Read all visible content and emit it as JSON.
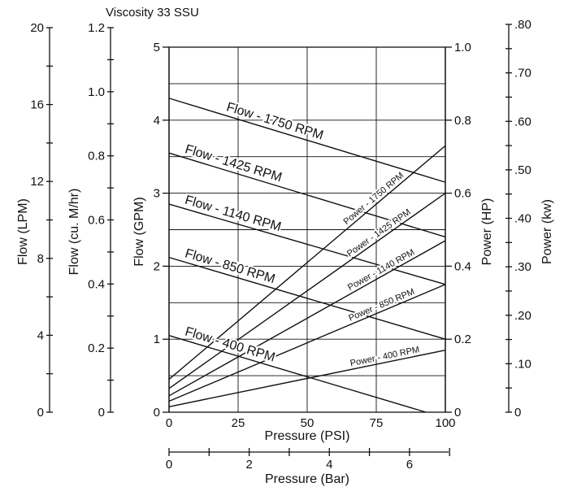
{
  "chart_data": {
    "type": "line",
    "title": "Viscosity 33 SSU",
    "xlabel": "Pressure (PSI)",
    "xlabel_secondary": "Pressure (Bar)",
    "ylabel_left": "Flow (GPM)",
    "ylabel_right": "Power (HP)",
    "xlim": [
      0,
      100
    ],
    "ylim_flow_gpm": [
      0,
      5
    ],
    "ylim_power_hp": [
      0,
      1.0
    ],
    "grid": true,
    "axes": {
      "lpm": {
        "label": "Flow (LPM)",
        "ticks": [
          "0",
          "4",
          "8",
          "12",
          "16",
          "20"
        ]
      },
      "cumhr": {
        "label": "Flow (cu. M/hr)",
        "ticks": [
          "0",
          "0.2",
          "0.4",
          "0.6",
          "0.8",
          "1.0",
          "1.2"
        ]
      },
      "gpm": {
        "label": "Flow (GPM)",
        "ticks": [
          "0",
          "1",
          "2",
          "3",
          "4",
          "5"
        ]
      },
      "hp": {
        "label": "Power (HP)",
        "ticks": [
          "0",
          "0.2",
          "0.4",
          "0.6",
          "0.8",
          "1.0"
        ]
      },
      "kw": {
        "label": "Power (kw)",
        "ticks": [
          "0",
          ".10",
          ".20",
          ".30",
          ".40",
          ".50",
          ".60",
          ".70",
          ".80"
        ]
      },
      "psi": {
        "label": "Pressure (PSI)",
        "ticks": [
          "0",
          "25",
          "50",
          "75",
          "100"
        ]
      },
      "bar": {
        "label": "Pressure (Bar)",
        "ticks": [
          "0",
          "2",
          "4",
          "6"
        ]
      }
    },
    "series": [
      {
        "name": "Flow - 1750 RPM",
        "kind": "flow",
        "x": [
          0,
          100
        ],
        "y": [
          4.3,
          3.15
        ]
      },
      {
        "name": "Flow - 1425 RPM",
        "kind": "flow",
        "x": [
          0,
          100
        ],
        "y": [
          3.55,
          2.4
        ]
      },
      {
        "name": "Flow - 1140 RPM",
        "kind": "flow",
        "x": [
          0,
          100
        ],
        "y": [
          2.85,
          1.75
        ]
      },
      {
        "name": "Flow - 850 RPM",
        "kind": "flow",
        "x": [
          0,
          100
        ],
        "y": [
          2.12,
          1.0
        ]
      },
      {
        "name": "Flow - 400 RPM",
        "kind": "flow",
        "x": [
          0,
          93
        ],
        "y": [
          1.05,
          0.0
        ]
      },
      {
        "name": "Power - 1750 RPM",
        "kind": "power",
        "x": [
          0,
          100
        ],
        "y": [
          0.09,
          0.73
        ]
      },
      {
        "name": "Power - 1425 RPM",
        "kind": "power",
        "x": [
          0,
          100
        ],
        "y": [
          0.065,
          0.6
        ]
      },
      {
        "name": "Power - 1140 RPM",
        "kind": "power",
        "x": [
          0,
          100
        ],
        "y": [
          0.045,
          0.47
        ]
      },
      {
        "name": "Power - 850 RPM",
        "kind": "power",
        "x": [
          0,
          100
        ],
        "y": [
          0.03,
          0.35
        ]
      },
      {
        "name": "Power - 400 RPM",
        "kind": "power",
        "x": [
          0,
          100
        ],
        "y": [
          0.015,
          0.17
        ]
      }
    ]
  }
}
